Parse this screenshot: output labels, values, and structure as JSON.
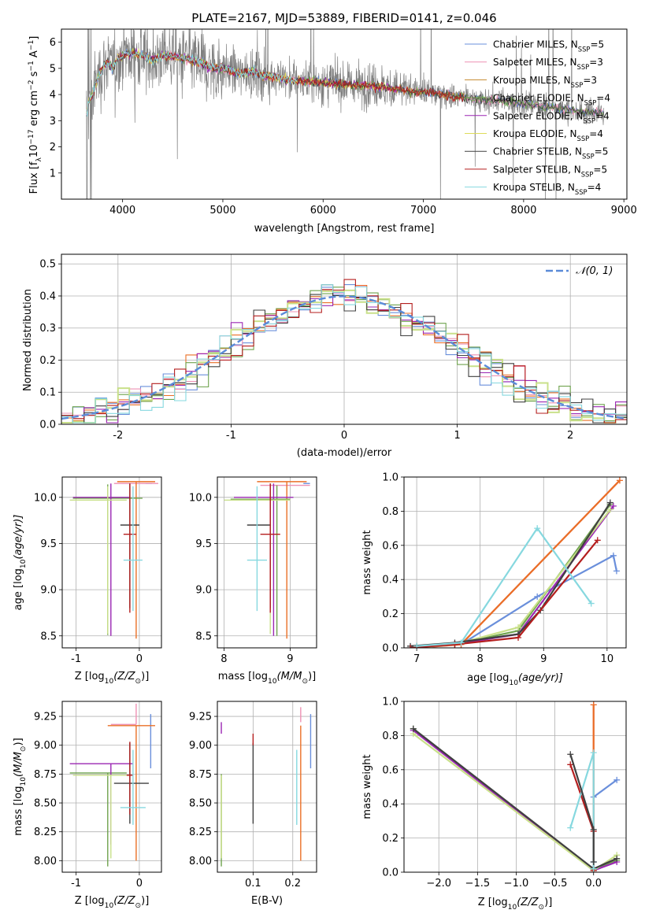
{
  "colors": {
    "data": "#808080",
    "normal": "#5b8bd8",
    "series": [
      "#6a8fdb",
      "#ee91b4",
      "#c5872c",
      "#6fa34e",
      "#9b27b3",
      "#dedb59",
      "#404040",
      "#b41e1e",
      "#86d8df"
    ],
    "overlay": [
      "#6a8fdb",
      "#ee91b4",
      "#ea6f26",
      "#6fa34e",
      "#9b27b3",
      "#c9e08a",
      "#404040",
      "#b41e1e",
      "#86d8df"
    ]
  },
  "chart_data": [
    {
      "id": "spectrum",
      "type": "line",
      "title": "PLATE=2167, MJD=53889, FIBERID=0141, z=0.046",
      "xlabel": "wavelength [Angstrom, rest frame]",
      "ylabel": "Flux [f",
      "ylabel_parts": [
        "Flux [f",
        "λ",
        "10",
        "−17",
        " erg cm",
        "−2",
        " s",
        "−1",
        " A",
        "−1",
        "]"
      ],
      "xlim": [
        3390,
        9030
      ],
      "ylim": [
        0,
        6.5
      ],
      "xticks": [
        4000,
        5000,
        6000,
        7000,
        8000,
        9000
      ],
      "yticks": [
        1,
        2,
        3,
        4,
        5,
        6
      ],
      "legend_position": "upper-right",
      "legend": [
        {
          "main": "Chabrier MILES, N",
          "sub": "SSP",
          "tail": "=5"
        },
        {
          "main": "Salpeter MILES, N",
          "sub": "SSP",
          "tail": "=3"
        },
        {
          "main": "Kroupa MILES, N",
          "sub": "SSP",
          "tail": "=3"
        },
        {
          "main": "Chabrier ELODIE, N",
          "sub": "SSP",
          "tail": "=4"
        },
        {
          "main": "Salpeter ELODIE, N",
          "sub": "SSP",
          "tail": "=4"
        },
        {
          "main": "Kroupa ELODIE, N",
          "sub": "SSP",
          "tail": "=4"
        },
        {
          "main": "Chabrier STELIB, N",
          "sub": "SSP",
          "tail": "=5"
        },
        {
          "main": "Salpeter STELIB, N",
          "sub": "SSP",
          "tail": "=5"
        },
        {
          "main": "Kroupa STELIB, N",
          "sub": "SSP",
          "tail": "=4"
        }
      ],
      "continuum": [
        [
          3650,
          3.7
        ],
        [
          3700,
          4.0
        ],
        [
          3750,
          4.6
        ],
        [
          3800,
          5.0
        ],
        [
          3850,
          5.3
        ],
        [
          3900,
          5.0
        ],
        [
          3950,
          5.4
        ],
        [
          4000,
          5.5
        ],
        [
          4100,
          5.6
        ],
        [
          4200,
          5.5
        ],
        [
          4300,
          5.3
        ],
        [
          4400,
          5.5
        ],
        [
          4500,
          5.45
        ],
        [
          4600,
          5.4
        ],
        [
          4700,
          5.3
        ],
        [
          4800,
          5.2
        ],
        [
          4900,
          5.0
        ],
        [
          5000,
          5.0
        ],
        [
          5100,
          4.9
        ],
        [
          5200,
          4.8
        ],
        [
          5300,
          4.9
        ],
        [
          5400,
          4.7
        ],
        [
          5500,
          4.7
        ],
        [
          5600,
          4.6
        ],
        [
          5700,
          4.55
        ],
        [
          5800,
          4.5
        ],
        [
          5900,
          4.5
        ],
        [
          6000,
          4.45
        ],
        [
          6200,
          4.4
        ],
        [
          6400,
          4.35
        ],
        [
          6600,
          4.3
        ],
        [
          6800,
          4.15
        ],
        [
          7000,
          4.1
        ],
        [
          7200,
          4.0
        ],
        [
          7400,
          3.9
        ],
        [
          7600,
          3.8
        ],
        [
          7800,
          3.75
        ],
        [
          8000,
          3.65
        ],
        [
          8200,
          3.55
        ],
        [
          8400,
          3.45
        ],
        [
          8600,
          3.35
        ],
        [
          8800,
          3.3
        ]
      ],
      "model_ranges": [
        [
          3640,
          8800
        ],
        [
          3640,
          8800
        ],
        [
          3640,
          7415
        ],
        [
          3640,
          8800
        ],
        [
          3640,
          6800
        ],
        [
          3640,
          6800
        ],
        [
          3640,
          8800
        ],
        [
          3640,
          7415
        ],
        [
          3640,
          5740
        ]
      ]
    },
    {
      "id": "residuals",
      "type": "line",
      "xlabel": "(data-model)/error",
      "ylabel": "Normed distribution",
      "xlim": [
        -2.5,
        2.5
      ],
      "ylim": [
        0,
        0.53
      ],
      "xticks": [
        -2,
        -1,
        0,
        1,
        2
      ],
      "yticks": [
        0.0,
        0.1,
        0.2,
        0.3,
        0.4,
        0.5
      ],
      "legend": "𝒩(0, 1)",
      "legend_position": "upper-right",
      "bin_width": 0.1,
      "bin_start": -2.5
    },
    {
      "id": "age-vs-Z",
      "type": "scatter",
      "xlabel": "Z [log",
      "xlabel_parts": [
        "Z [log",
        "10",
        "(Z/Z",
        "⊙",
        ")]"
      ],
      "ylabel_parts": [
        "age  [log",
        "10",
        "(age/yr)]"
      ],
      "xlim": [
        -1.22,
        0.35
      ],
      "ylim": [
        8.37,
        10.22
      ],
      "xticks": [
        -1,
        0
      ],
      "yticks": [
        8.5,
        9.0,
        9.5,
        10.0
      ],
      "points": [
        {
          "x": 0.15,
          "y": 10.15,
          "xerr": [
            0.05,
            0.05
          ],
          "yerr": [
            0.0,
            0.0
          ]
        },
        {
          "x": -0.05,
          "y": 10.15,
          "xerr": [
            0.35,
            0.35
          ],
          "yerr": [
            0.0,
            0.0
          ]
        },
        {
          "x": -0.05,
          "y": 10.17,
          "xerr": [
            0.3,
            0.3
          ],
          "yerr": [
            1.7,
            0.0
          ]
        },
        {
          "x": -0.5,
          "y": 9.99,
          "xerr": [
            0.55,
            0.55
          ],
          "yerr": [
            1.48,
            0.15
          ]
        },
        {
          "x": -0.45,
          "y": 10.0,
          "xerr": [
            0.6,
            0.3
          ],
          "yerr": [
            1.5,
            0.15
          ]
        },
        {
          "x": -0.5,
          "y": 9.97,
          "xerr": [
            0.6,
            0.3
          ],
          "yerr": [
            1.45,
            0.15
          ]
        },
        {
          "x": -0.15,
          "y": 9.7,
          "xerr": [
            0.15,
            0.15
          ],
          "yerr": [
            0.9,
            0.45
          ]
        },
        {
          "x": -0.15,
          "y": 9.6,
          "xerr": [
            0.1,
            0.1
          ],
          "yerr": [
            0.85,
            0.55
          ]
        },
        {
          "x": -0.1,
          "y": 9.32,
          "xerr": [
            0.15,
            0.15
          ],
          "yerr": [
            0.55,
            0.8
          ]
        }
      ]
    },
    {
      "id": "age-vs-mass",
      "type": "scatter",
      "xlabel_parts": [
        "mass [log",
        "10",
        "(M/M",
        "⊙",
        ")]"
      ],
      "xlim": [
        7.9,
        9.4
      ],
      "ylim": [
        8.37,
        10.22
      ],
      "xticks": [
        8,
        9
      ],
      "yticks": [
        8.5,
        9.0,
        9.5,
        10.0
      ],
      "points": [
        {
          "x": 9.25,
          "y": 10.15,
          "xerr": [
            0.05,
            0.05
          ],
          "yerr": [
            0.0,
            0.0
          ]
        },
        {
          "x": 8.9,
          "y": 10.13,
          "xerr": [
            0.35,
            0.4
          ],
          "yerr": [
            0.0,
            0.0
          ]
        },
        {
          "x": 8.95,
          "y": 10.17,
          "xerr": [
            0.45,
            0.3
          ],
          "yerr": [
            1.7,
            0.0
          ]
        },
        {
          "x": 8.8,
          "y": 9.98,
          "xerr": [
            0.7,
            0.2
          ],
          "yerr": [
            1.48,
            0.15
          ]
        },
        {
          "x": 8.75,
          "y": 10.0,
          "xerr": [
            0.6,
            0.3
          ],
          "yerr": [
            1.5,
            0.15
          ]
        },
        {
          "x": 8.7,
          "y": 9.97,
          "xerr": [
            0.7,
            0.3
          ],
          "yerr": [
            1.45,
            0.15
          ]
        },
        {
          "x": 8.7,
          "y": 9.7,
          "xerr": [
            0.35,
            0.0
          ],
          "yerr": [
            0.9,
            0.45
          ]
        },
        {
          "x": 8.7,
          "y": 9.6,
          "xerr": [
            0.15,
            0.15
          ],
          "yerr": [
            0.85,
            0.55
          ]
        },
        {
          "x": 8.5,
          "y": 9.32,
          "xerr": [
            0.15,
            0.15
          ],
          "yerr": [
            0.55,
            0.8
          ]
        }
      ]
    },
    {
      "id": "massweight-vs-age",
      "type": "line",
      "xlabel_parts": [
        "age  [log",
        "10",
        "(age/yr)]"
      ],
      "ylabel": "mass weight",
      "xlim": [
        6.8,
        10.3
      ],
      "ylim": [
        0,
        1.0
      ],
      "xticks": [
        7,
        8,
        9,
        10
      ],
      "yticks": [
        0.0,
        0.2,
        0.4,
        0.6,
        0.8,
        1.0
      ],
      "series": [
        {
          "x": [
            7.0,
            7.7,
            8.9,
            10.1,
            10.15
          ],
          "y": [
            0.01,
            0.02,
            0.3,
            0.54,
            0.45
          ]
        },
        {
          "x": [
            7.0,
            7.7,
            10.2
          ],
          "y": [
            0.0,
            0.02,
            0.98
          ]
        },
        {
          "x": [
            7.0,
            7.7,
            10.2
          ],
          "y": [
            0.0,
            0.02,
            0.98
          ]
        },
        {
          "x": [
            7.0,
            7.6,
            8.6,
            10.05
          ],
          "y": [
            0.01,
            0.02,
            0.1,
            0.84
          ]
        },
        {
          "x": [
            7.0,
            7.6,
            8.6,
            10.1
          ],
          "y": [
            0.0,
            0.02,
            0.08,
            0.83
          ]
        },
        {
          "x": [
            7.0,
            7.6,
            8.6,
            10.05
          ],
          "y": [
            0.0,
            0.02,
            0.12,
            0.81
          ]
        },
        {
          "x": [
            6.9,
            7.6,
            8.6,
            8.95,
            10.05
          ],
          "y": [
            0.01,
            0.03,
            0.08,
            0.22,
            0.85
          ]
        },
        {
          "x": [
            6.9,
            7.6,
            8.6,
            9.85
          ],
          "y": [
            0.0,
            0.02,
            0.06,
            0.63
          ]
        },
        {
          "x": [
            7.0,
            7.7,
            8.9,
            9.75
          ],
          "y": [
            0.01,
            0.03,
            0.7,
            0.26
          ]
        }
      ]
    },
    {
      "id": "mass-vs-Z",
      "type": "scatter",
      "xlabel_parts": [
        "Z [log",
        "10",
        "(Z/Z",
        "⊙",
        ")]"
      ],
      "ylabel_parts": [
        "mass [log",
        "10",
        "(M/M",
        "⊙",
        ")]"
      ],
      "xlim": [
        -1.22,
        0.35
      ],
      "ylim": [
        7.9,
        9.38
      ],
      "xticks": [
        -1,
        0
      ],
      "yticks": [
        8.0,
        8.25,
        8.5,
        8.75,
        9.0,
        9.25
      ],
      "points": [
        {
          "x": 0.18,
          "y": 9.05,
          "xerr": [
            0.0,
            0.0
          ],
          "yerr": [
            0.25,
            0.22
          ]
        },
        {
          "x": -0.05,
          "y": 9.18,
          "xerr": [
            0.4,
            0.0
          ],
          "yerr": [
            0.0,
            0.18
          ]
        },
        {
          "x": -0.05,
          "y": 9.17,
          "xerr": [
            0.45,
            0.3
          ],
          "yerr": [
            1.17,
            0.0
          ]
        },
        {
          "x": -0.5,
          "y": 8.76,
          "xerr": [
            0.6,
            0.3
          ],
          "yerr": [
            0.81,
            0.0
          ]
        },
        {
          "x": -0.45,
          "y": 8.84,
          "xerr": [
            0.65,
            0.35
          ],
          "yerr": [
            0.7,
            0.0
          ]
        },
        {
          "x": -0.45,
          "y": 8.74,
          "xerr": [
            0.6,
            0.3
          ],
          "yerr": [
            0.72,
            0.0
          ]
        },
        {
          "x": -0.15,
          "y": 8.67,
          "xerr": [
            0.25,
            0.3
          ],
          "yerr": [
            0.35,
            0.35
          ]
        },
        {
          "x": -0.15,
          "y": 8.74,
          "xerr": [
            0.05,
            0.05
          ],
          "yerr": [
            0.34,
            0.29
          ]
        },
        {
          "x": -0.1,
          "y": 8.46,
          "xerr": [
            0.2,
            0.2
          ],
          "yerr": [
            0.15,
            0.5
          ]
        }
      ]
    },
    {
      "id": "mass-vs-ebv",
      "type": "scatter",
      "xlabel": "E(B-V)",
      "xlim": [
        0.01,
        0.26
      ],
      "ylim": [
        7.9,
        9.38
      ],
      "xticks": [
        0.1,
        0.2
      ],
      "yticks": [
        8.0,
        8.25,
        8.5,
        8.75,
        9.0,
        9.25
      ],
      "points": [
        {
          "x": 0.245,
          "y": 9.05,
          "xerr": [
            0.0,
            0.0
          ],
          "yerr": [
            0.25,
            0.22
          ]
        },
        {
          "x": 0.22,
          "y": 9.2,
          "xerr": [
            0.0,
            0.0
          ],
          "yerr": [
            0.0,
            0.13
          ]
        },
        {
          "x": 0.22,
          "y": 9.17,
          "xerr": [
            0.0,
            0.0
          ],
          "yerr": [
            1.17,
            0.0
          ]
        },
        {
          "x": 0.02,
          "y": 8.75,
          "xerr": [
            0.0,
            0.0
          ],
          "yerr": [
            0.8,
            0.0
          ]
        },
        {
          "x": 0.02,
          "y": 9.1,
          "xerr": [
            0.0,
            0.0
          ],
          "yerr": [
            0.0,
            0.1
          ]
        },
        {
          "x": 0.02,
          "y": 8.74,
          "xerr": [
            0.0,
            0.0
          ],
          "yerr": [
            0.72,
            0.0
          ]
        },
        {
          "x": 0.1,
          "y": 8.67,
          "xerr": [
            0.0,
            0.0
          ],
          "yerr": [
            0.35,
            0.35
          ]
        },
        {
          "x": 0.1,
          "y": 9.0,
          "xerr": [
            0.0,
            0.0
          ],
          "yerr": [
            0.0,
            0.1
          ]
        },
        {
          "x": 0.21,
          "y": 8.46,
          "xerr": [
            0.0,
            0.0
          ],
          "yerr": [
            0.15,
            0.5
          ]
        }
      ]
    },
    {
      "id": "massweight-vs-Z",
      "type": "line",
      "xlabel_parts": [
        "Z [log",
        "10",
        "(Z/Z",
        "⊙",
        ")]"
      ],
      "ylabel": "mass weight",
      "xlim": [
        -2.45,
        0.42
      ],
      "ylim": [
        0,
        1.0
      ],
      "xticks": [
        -2.0,
        -1.5,
        -1.0,
        -0.5,
        0.0
      ],
      "yticks": [
        0.0,
        0.2,
        0.4,
        0.6,
        0.8,
        1.0
      ],
      "series": [
        {
          "x": [
            0.0,
            0.0,
            0.3
          ],
          "y": [
            0.06,
            0.44,
            0.54
          ]
        },
        {
          "x": [
            0.0,
            0.0
          ],
          "y": [
            0.0,
            0.98
          ]
        },
        {
          "x": [
            0.0,
            0.0
          ],
          "y": [
            0.0,
            0.98
          ]
        },
        {
          "x": [
            -2.33,
            0.0,
            0.3
          ],
          "y": [
            0.84,
            0.01,
            0.07
          ]
        },
        {
          "x": [
            -2.33,
            0.0,
            0.3
          ],
          "y": [
            0.83,
            0.01,
            0.06
          ]
        },
        {
          "x": [
            -2.33,
            0.0,
            0.3
          ],
          "y": [
            0.81,
            0.01,
            0.1
          ]
        },
        {
          "x": [
            -2.33,
            0.0,
            0.3
          ],
          "y": [
            0.84,
            0.02,
            0.08
          ]
        },
        {
          "x": [
            -0.3,
            0.0,
            0.0
          ],
          "y": [
            0.63,
            0.24,
            0.01
          ]
        },
        {
          "x": [
            -0.3,
            0.0,
            0.0
          ],
          "y": [
            0.26,
            0.7,
            0.02
          ]
        }
      ],
      "extra_series": [
        {
          "x": [
            -0.3,
            0.0,
            0.0
          ],
          "y": [
            0.69,
            0.25,
            0.06
          ]
        }
      ]
    }
  ]
}
